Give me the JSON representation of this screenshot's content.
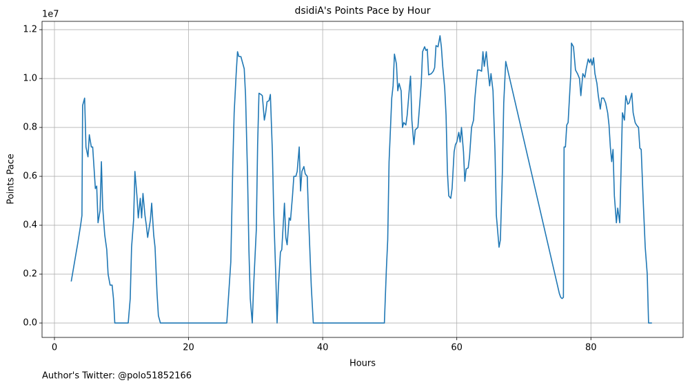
{
  "chart_data": {
    "type": "line",
    "title": "dsidiA's Points Pace by Hour",
    "x_label": "Hours",
    "y_label": "Points Pace",
    "y_offset_label": "1e7",
    "annotation": "Author's Twitter: @polo51852166",
    "color": "#1f77b4",
    "grid": true,
    "xlim": [
      -1.85,
      93.75
    ],
    "ylim": [
      -0.059,
      1.234
    ],
    "xticks": [
      0,
      20,
      40,
      60,
      80
    ],
    "yticks": [
      {
        "value": 0,
        "label": "0.0"
      },
      {
        "value": 0.2,
        "label": "0.2"
      },
      {
        "value": 0.4,
        "label": "0.4"
      },
      {
        "value": 0.6,
        "label": "0.6"
      },
      {
        "value": 0.8,
        "label": "0.8"
      },
      {
        "value": 1,
        "label": "1.0"
      },
      {
        "value": 1.2,
        "label": "1.2"
      }
    ],
    "x": [
      2.5,
      3.5,
      3.9,
      4.1,
      4.2,
      4.5,
      4.7,
      5.0,
      5.2,
      5.5,
      5.7,
      6.1,
      6.3,
      6.5,
      6.8,
      7.0,
      7.2,
      7.5,
      7.8,
      8.0,
      8.3,
      8.6,
      8.8,
      9.0,
      11.0,
      11.3,
      11.5,
      11.8,
      12.0,
      12.3,
      12.5,
      12.8,
      13.0,
      13.2,
      13.5,
      13.7,
      13.9,
      14.3,
      14.5,
      14.8,
      15.0,
      15.3,
      15.5,
      15.8,
      25.7,
      26.3,
      26.6,
      26.8,
      27.1,
      27.3,
      27.5,
      27.8,
      28.1,
      28.3,
      28.5,
      28.8,
      29.0,
      29.2,
      29.5,
      29.7,
      30.1,
      30.3,
      30.5,
      30.8,
      31.0,
      31.3,
      31.5,
      31.7,
      32.0,
      32.2,
      32.5,
      32.7,
      33.0,
      33.2,
      33.4,
      33.7,
      33.9,
      34.3,
      34.5,
      34.7,
      35.0,
      35.2,
      35.5,
      35.7,
      36.0,
      36.2,
      36.5,
      36.7,
      36.9,
      37.2,
      37.4,
      37.7,
      37.9,
      38.3,
      38.6,
      49.2,
      49.5,
      49.7,
      49.9,
      50.3,
      50.5,
      50.7,
      51.0,
      51.2,
      51.4,
      51.7,
      51.9,
      52.1,
      52.4,
      52.6,
      52.9,
      53.1,
      53.3,
      53.6,
      53.8,
      54.2,
      54.4,
      54.7,
      54.9,
      55.2,
      55.4,
      55.6,
      55.8,
      56.2,
      56.5,
      56.7,
      56.9,
      57.2,
      57.5,
      57.7,
      57.9,
      58.2,
      58.4,
      58.6,
      58.8,
      59.1,
      59.3,
      59.6,
      59.8,
      60.0,
      60.3,
      60.5,
      60.7,
      61.0,
      61.2,
      61.4,
      61.7,
      61.9,
      62.2,
      62.5,
      62.7,
      62.9,
      63.1,
      63.4,
      63.7,
      63.9,
      64.1,
      64.4,
      64.6,
      64.9,
      65.1,
      65.4,
      65.7,
      65.9,
      66.3,
      66.5,
      66.8,
      67.0,
      67.3,
      75.3,
      75.5,
      75.7,
      75.9,
      76.0,
      76.2,
      76.4,
      76.6,
      76.8,
      77.0,
      77.1,
      77.4,
      77.7,
      78.0,
      78.3,
      78.5,
      78.8,
      79.1,
      79.3,
      79.6,
      79.8,
      80.0,
      80.2,
      80.4,
      80.6,
      80.9,
      81.1,
      81.4,
      81.6,
      81.9,
      82.2,
      82.5,
      82.7,
      82.9,
      83.1,
      83.3,
      83.5,
      83.8,
      84.0,
      84.3,
      84.5,
      84.7,
      85.0,
      85.2,
      85.5,
      85.7,
      86.1,
      86.3,
      86.6,
      86.8,
      87.1,
      87.3,
      87.5,
      87.8,
      88.1,
      88.4,
      88.6,
      89.1
    ],
    "values": [
      0.17,
      0.33,
      0.4,
      0.44,
      0.89,
      0.92,
      0.72,
      0.68,
      0.77,
      0.72,
      0.72,
      0.55,
      0.56,
      0.41,
      0.46,
      0.66,
      0.47,
      0.36,
      0.3,
      0.2,
      0.155,
      0.155,
      0.1,
      0,
      0,
      0.1,
      0.31,
      0.42,
      0.62,
      0.52,
      0.43,
      0.51,
      0.43,
      0.53,
      0.44,
      0.4,
      0.35,
      0.42,
      0.49,
      0.36,
      0.31,
      0.12,
      0.03,
      0,
      0,
      0.25,
      0.65,
      0.86,
      1.02,
      1.11,
      1.09,
      1.09,
      1.06,
      1.04,
      0.93,
      0.6,
      0.3,
      0.1,
      0,
      0.15,
      0.38,
      0.73,
      0.94,
      0.935,
      0.93,
      0.83,
      0.86,
      0.905,
      0.91,
      0.935,
      0.7,
      0.45,
      0.2,
      0,
      0.15,
      0.29,
      0.3,
      0.49,
      0.35,
      0.32,
      0.43,
      0.42,
      0.52,
      0.6,
      0.6,
      0.62,
      0.72,
      0.54,
      0.62,
      0.64,
      0.61,
      0.6,
      0.43,
      0.15,
      0,
      0,
      0.22,
      0.34,
      0.66,
      0.92,
      0.97,
      1.1,
      1.06,
      0.95,
      0.98,
      0.95,
      0.8,
      0.82,
      0.81,
      0.85,
      0.95,
      1.01,
      0.83,
      0.73,
      0.79,
      0.8,
      0.87,
      0.98,
      1.11,
      1.13,
      1.115,
      1.12,
      1.015,
      1.02,
      1.03,
      1.045,
      1.135,
      1.13,
      1.175,
      1.13,
      1.05,
      0.96,
      0.85,
      0.62,
      0.52,
      0.51,
      0.55,
      0.7,
      0.73,
      0.74,
      0.78,
      0.74,
      0.8,
      0.7,
      0.58,
      0.63,
      0.635,
      0.68,
      0.8,
      0.83,
      0.92,
      0.98,
      1.035,
      1.035,
      1.03,
      1.11,
      1.05,
      1.11,
      1.05,
      0.97,
      1.02,
      0.95,
      0.7,
      0.44,
      0.31,
      0.34,
      0.62,
      0.9,
      1.07,
      0.12,
      0.105,
      0.1,
      0.105,
      0.72,
      0.72,
      0.81,
      0.82,
      0.92,
      1.02,
      1.145,
      1.13,
      1.035,
      1.02,
      1.0,
      0.93,
      1.02,
      1.005,
      1.04,
      1.08,
      1.065,
      1.08,
      1.055,
      1.085,
      1.02,
      0.98,
      0.93,
      0.875,
      0.92,
      0.92,
      0.9,
      0.86,
      0.81,
      0.72,
      0.66,
      0.71,
      0.52,
      0.41,
      0.47,
      0.41,
      0.63,
      0.86,
      0.83,
      0.93,
      0.895,
      0.9,
      0.94,
      0.86,
      0.82,
      0.81,
      0.8,
      0.715,
      0.71,
      0.5,
      0.31,
      0.2,
      0,
      0
    ]
  }
}
